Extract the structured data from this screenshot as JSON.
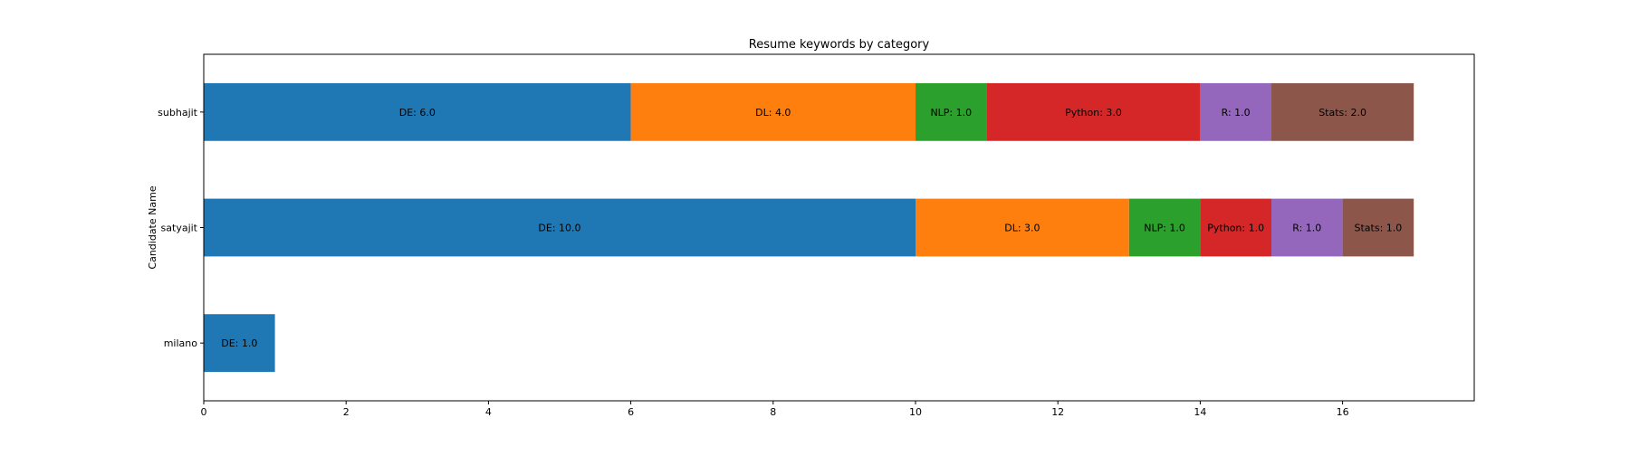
{
  "chart_data": {
    "type": "bar",
    "orientation": "horizontal",
    "stacked": true,
    "title": "Resume keywords by category",
    "xlabel": "",
    "ylabel": "Candidate Name",
    "categories": [
      "milano",
      "satyajit",
      "subhajit"
    ],
    "xlim": [
      0,
      17.85
    ],
    "xticks": [
      0,
      2,
      4,
      6,
      8,
      10,
      12,
      14,
      16
    ],
    "grid": false,
    "legend": "none",
    "series": [
      {
        "name": "DE",
        "color": "#1f77b4",
        "values": [
          1.0,
          10.0,
          6.0
        ]
      },
      {
        "name": "DL",
        "color": "#ff7f0e",
        "values": [
          0,
          3.0,
          4.0
        ]
      },
      {
        "name": "NLP",
        "color": "#2ca02c",
        "values": [
          0,
          1.0,
          1.0
        ]
      },
      {
        "name": "Python",
        "color": "#d62728",
        "values": [
          0,
          1.0,
          3.0
        ]
      },
      {
        "name": "R",
        "color": "#9467bd",
        "values": [
          0,
          1.0,
          1.0
        ]
      },
      {
        "name": "Stats",
        "color": "#8c564b",
        "values": [
          0,
          1.0,
          2.0
        ]
      }
    ],
    "data_labels": [
      [
        "DE: 1.0",
        "",
        "",
        "",
        "",
        ""
      ],
      [
        "DE: 10.0",
        "DL: 3.0",
        "NLP: 1.0",
        "Python: 1.0",
        "R: 1.0",
        "Stats: 1.0"
      ],
      [
        "DE: 6.0",
        "DL: 4.0",
        "NLP: 1.0",
        "Python: 3.0",
        "R: 1.0",
        "Stats: 2.0"
      ]
    ]
  }
}
